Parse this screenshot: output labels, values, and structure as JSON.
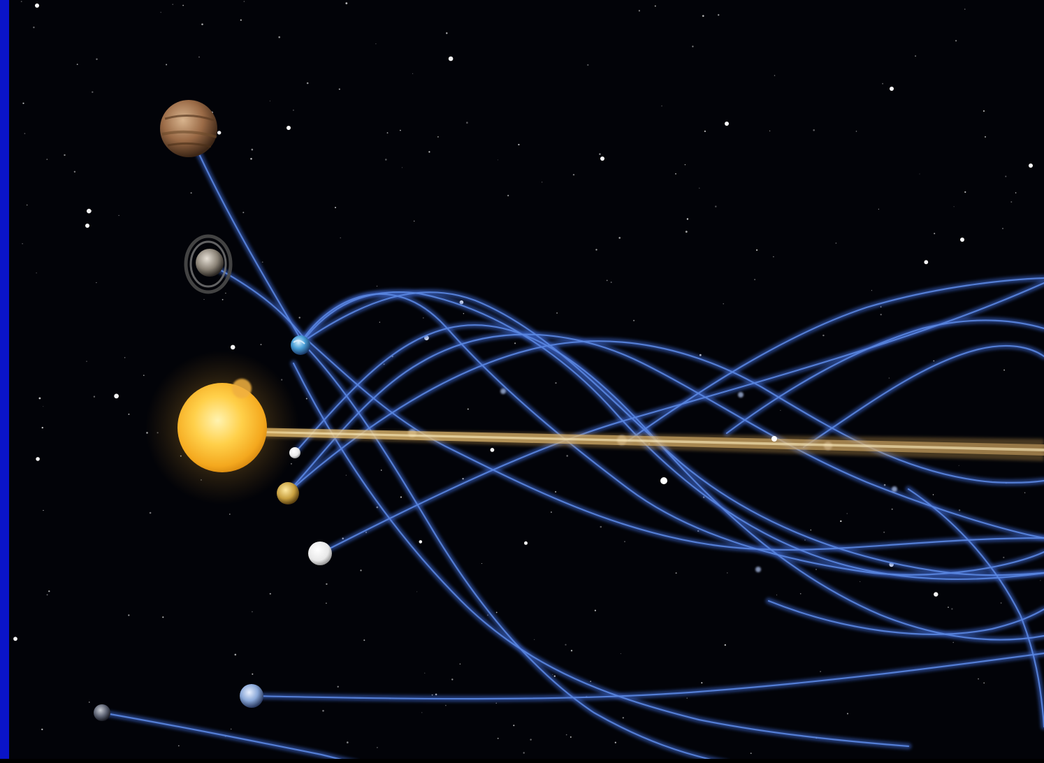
{
  "image": {
    "background_color": "#020308",
    "frame_color": "#0a14c8",
    "sun_color": "#ffc23a",
    "sun_core_color": "#fff0a8",
    "sun_trail_color": "#d9b46a",
    "orbit_trail_color": "#3a64c8",
    "star_color": "#ffffff"
  },
  "bodies": [
    {
      "name": "sun",
      "icon": "sun-icon"
    },
    {
      "name": "jupiter",
      "icon": "gas-giant-icon"
    },
    {
      "name": "saturn",
      "icon": "ringed-planet-icon"
    },
    {
      "name": "earth",
      "icon": "planet-icon"
    },
    {
      "name": "mercury",
      "icon": "planet-icon"
    },
    {
      "name": "venus",
      "icon": "planet-icon"
    },
    {
      "name": "mars-like-white",
      "icon": "planet-icon"
    },
    {
      "name": "uranus",
      "icon": "planet-icon"
    },
    {
      "name": "neptune",
      "icon": "planet-icon"
    }
  ]
}
